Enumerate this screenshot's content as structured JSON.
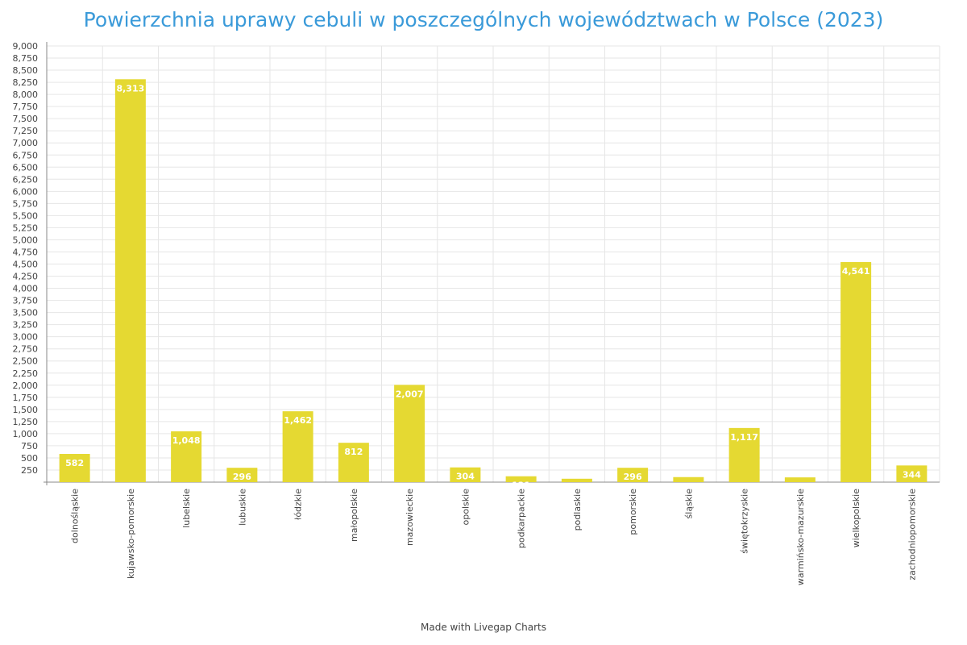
{
  "chart_data": {
    "type": "bar",
    "title": "Powierzchnia uprawy cebuli w poszczególnych województwach w Polsce (2023)",
    "xlabel": "",
    "ylabel": "",
    "ylim": [
      0,
      9000
    ],
    "ytick_step": 250,
    "grid": true,
    "bar_color": "#e5d932",
    "categories": [
      "dolnośląskie",
      "kujawsko-pomorskie",
      "lubelskie",
      "lubuskie",
      "łódzkie",
      "małopolskie",
      "mazowieckie",
      "opolskie",
      "podkarpackie",
      "podlaskie",
      "pomorskie",
      "śląskie",
      "świętokrzyskie",
      "warmińsko-mazurskie",
      "wielkopolskie",
      "zachodniopomorskie"
    ],
    "values": [
      582,
      8313,
      1048,
      296,
      1462,
      812,
      2007,
      304,
      121,
      70,
      296,
      104,
      1117,
      98,
      4541,
      344
    ]
  },
  "footer": "Made with Livegap Charts"
}
